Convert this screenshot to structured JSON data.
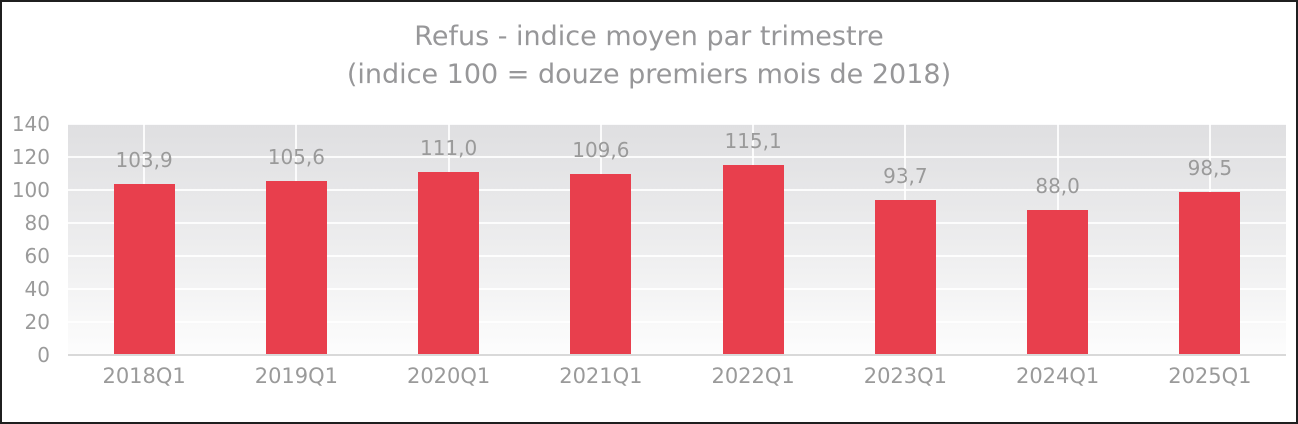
{
  "chart_data": {
    "type": "bar",
    "title": "Refus - indice moyen par trimestre",
    "subtitle": "(indice 100 = douze premiers mois de 2018)",
    "categories": [
      "2018Q1",
      "2019Q1",
      "2020Q1",
      "2021Q1",
      "2022Q1",
      "2023Q1",
      "2024Q1",
      "2025Q1"
    ],
    "values": [
      103.9,
      105.6,
      111.0,
      109.6,
      115.1,
      93.7,
      88.0,
      98.5
    ],
    "value_labels": [
      "103,9",
      "105,6",
      "111,0",
      "109,6",
      "115,1",
      "93,7",
      "88,0",
      "98,5"
    ],
    "xlabel": "",
    "ylabel": "",
    "ylim": [
      0,
      140
    ],
    "y_ticks": [
      0,
      20,
      40,
      60,
      80,
      100,
      120,
      140
    ],
    "grid": true,
    "legend": false,
    "bar_color": "#e83f4d",
    "text_color": "#9a9a9a",
    "title_color": "#979799",
    "plot_bg_top": "#dfdfe1",
    "plot_bg_bottom": "#fdfdfd",
    "gridline_color": "#ffffff"
  }
}
